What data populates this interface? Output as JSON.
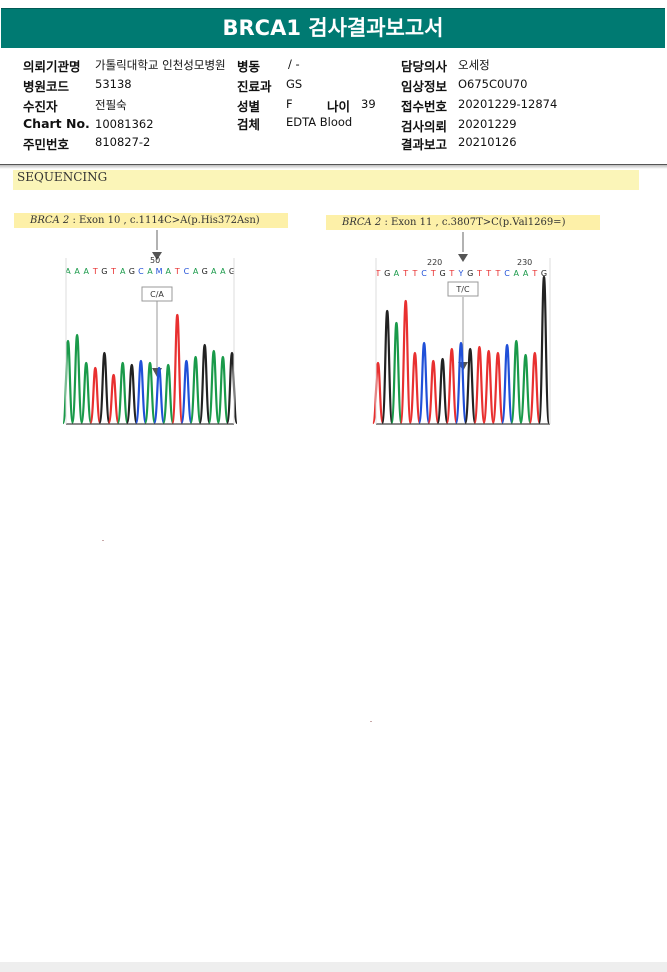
{
  "title": "BRCA1 검사결과보고서",
  "info": {
    "institution_label": "의뢰기관명",
    "institution_value": "가톨릭대학교 인천성모병원",
    "ward_label": "병동",
    "ward_value": "/ -",
    "doctor_label": "담당의사",
    "doctor_value": "오세정",
    "hospital_code_label": "병원코드",
    "hospital_code_value": "53138",
    "department_label": "진료과",
    "department_value": "GS",
    "clinical_label": "임상정보",
    "clinical_value": "O675C0U70",
    "patient_label": "수진자",
    "patient_value": "전필숙",
    "sex_label": "성별",
    "sex_value": "F",
    "age_label": "나이",
    "age_value": "39",
    "receipt_label": "접수번호",
    "receipt_value": "20201229-12874",
    "chart_label": "Chart No.",
    "chart_value": "10081362",
    "specimen_label": "검체",
    "specimen_value": "EDTA Blood",
    "request_label": "검사의뢰",
    "request_value": "20201229",
    "resident_label": "주민번호",
    "resident_value": "810827-2",
    "report_label": "결과보고",
    "report_value": "20210126"
  },
  "sequencing_heading": "SEQUENCING",
  "variants": [
    {
      "gene": "BRCA 2",
      "desc": " : Exon 10 , c.1114C>A(p.His372Asn)",
      "position_label": "50",
      "sequence": "AAATGTAGCAMATCAGAAG",
      "call": "C/A",
      "colors": {
        "A": "#1a9a4a",
        "T": "#e83030",
        "G": "#222222",
        "C": "#2050d8",
        "M": "#2050d8"
      }
    },
    {
      "gene": "BRCA 2",
      "desc": " : Exon 11 , c.3807T>C(p.Val1269=)",
      "position_label_1": "220",
      "position_label_2": "230",
      "sequence": "TGATTCTGTYGTTTCAATG",
      "call": "T/C",
      "colors": {
        "A": "#1a9a4a",
        "T": "#e83030",
        "G": "#222222",
        "C": "#2050d8",
        "Y": "#2050d8"
      }
    }
  ]
}
